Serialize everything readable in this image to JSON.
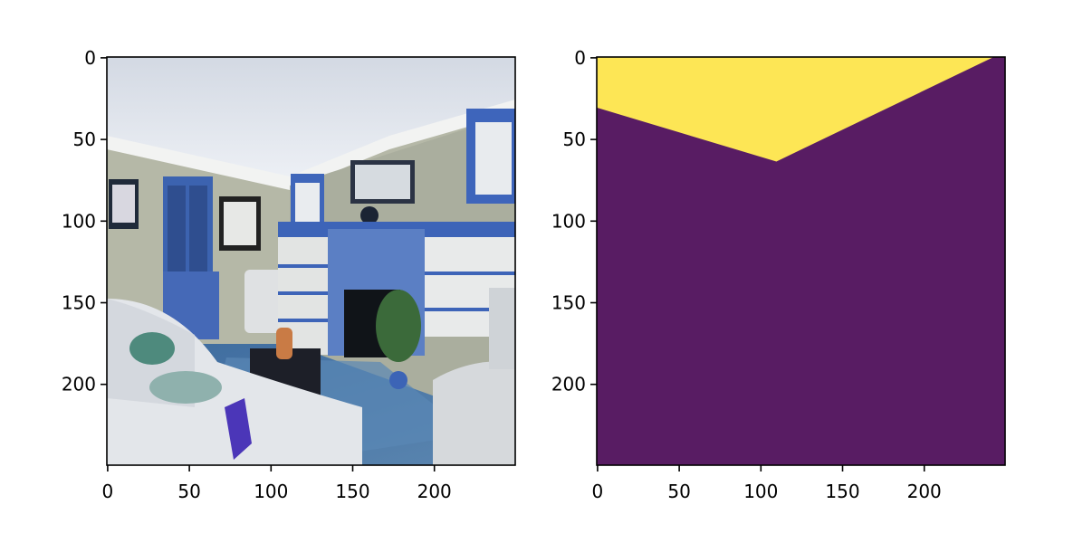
{
  "figure": {
    "panels": [
      {
        "name": "photo",
        "description_tag": "living-room-photo",
        "x_ticks": [
          "0",
          "50",
          "100",
          "150",
          "200"
        ],
        "y_ticks": [
          "0",
          "50",
          "100",
          "150",
          "200"
        ],
        "x_tick_values": [
          0,
          50,
          100,
          150,
          200
        ],
        "y_tick_values": [
          0,
          50,
          100,
          150,
          200
        ],
        "extent": [
          250,
          250
        ]
      },
      {
        "name": "mask",
        "x_ticks": [
          "0",
          "50",
          "100",
          "150",
          "200"
        ],
        "y_ticks": [
          "0",
          "50",
          "100",
          "150",
          "200"
        ],
        "x_tick_values": [
          0,
          50,
          100,
          150,
          200
        ],
        "y_tick_values": [
          0,
          50,
          100,
          150,
          200
        ],
        "extent": [
          250,
          250
        ],
        "mask_boundary": [
          [
            0,
            31
          ],
          [
            110,
            64
          ],
          [
            243,
            0
          ]
        ],
        "colors": {
          "fill_low": "#581c63",
          "fill_high": "#fde655"
        }
      }
    ]
  }
}
